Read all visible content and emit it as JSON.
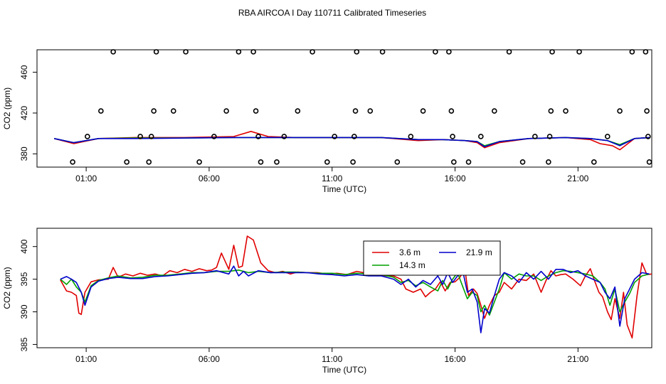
{
  "title": "RBA AIRCOA I  Day 110711  Calibrated Timeseries",
  "chart_data": [
    {
      "type": "scatter+line",
      "xlabel": "Time (UTC)",
      "ylabel": "CO2 (ppm)",
      "xticks": [
        "01:00",
        "06:00",
        "11:00",
        "16:00",
        "21:00"
      ],
      "xtick_hours": [
        1,
        6,
        11,
        16,
        21
      ],
      "xlim": [
        -1.0,
        24.0
      ],
      "yticks": [
        380,
        420,
        460
      ],
      "ylim": [
        367,
        482
      ],
      "grid": false,
      "legend": "none",
      "calibration_points": {
        "marker": "open-circle",
        "color": "#000000",
        "points": [
          [
            0.45,
            372
          ],
          [
            1.05,
            397
          ],
          [
            1.6,
            422
          ],
          [
            2.1,
            480
          ],
          [
            2.65,
            372
          ],
          [
            3.2,
            397
          ],
          [
            3.55,
            372
          ],
          [
            3.65,
            397
          ],
          [
            3.75,
            422
          ],
          [
            3.85,
            480
          ],
          [
            4.55,
            422
          ],
          [
            5.05,
            480
          ],
          [
            5.6,
            372
          ],
          [
            6.2,
            397
          ],
          [
            6.7,
            422
          ],
          [
            7.2,
            480
          ],
          [
            7.8,
            480
          ],
          [
            7.9,
            422
          ],
          [
            8.0,
            397
          ],
          [
            8.1,
            372
          ],
          [
            8.75,
            372
          ],
          [
            9.05,
            397
          ],
          [
            9.6,
            422
          ],
          [
            10.2,
            480
          ],
          [
            10.8,
            372
          ],
          [
            11.1,
            397
          ],
          [
            11.85,
            372
          ],
          [
            11.9,
            397
          ],
          [
            11.95,
            422
          ],
          [
            12.0,
            480
          ],
          [
            12.55,
            422
          ],
          [
            13.05,
            480
          ],
          [
            13.65,
            372
          ],
          [
            14.2,
            397
          ],
          [
            14.7,
            422
          ],
          [
            15.2,
            480
          ],
          [
            15.75,
            480
          ],
          [
            15.85,
            422
          ],
          [
            15.9,
            397
          ],
          [
            15.95,
            372
          ],
          [
            16.55,
            372
          ],
          [
            17.05,
            397
          ],
          [
            17.6,
            422
          ],
          [
            18.2,
            480
          ],
          [
            18.75,
            372
          ],
          [
            19.25,
            397
          ],
          [
            19.8,
            372
          ],
          [
            19.85,
            397
          ],
          [
            19.9,
            422
          ],
          [
            19.95,
            480
          ],
          [
            20.5,
            422
          ],
          [
            21.05,
            480
          ],
          [
            21.65,
            372
          ],
          [
            22.2,
            397
          ],
          [
            22.7,
            422
          ],
          [
            23.2,
            480
          ],
          [
            23.75,
            480
          ],
          [
            23.8,
            422
          ],
          [
            23.85,
            397
          ],
          [
            23.9,
            372
          ]
        ]
      },
      "series": [
        {
          "color": "#e00000",
          "x": [
            -0.3,
            0.5,
            1.5,
            3.0,
            5.0,
            7.0,
            7.7,
            8.4,
            9.5,
            11.0,
            13.0,
            14.5,
            15.5,
            16.4,
            16.9,
            17.2,
            17.8,
            19.0,
            20.5,
            21.5,
            21.9,
            22.4,
            22.7,
            23.3,
            23.9
          ],
          "y": [
            395,
            390,
            395,
            396,
            396,
            397,
            402,
            397,
            396,
            396,
            396,
            393,
            394,
            393,
            391,
            386,
            391,
            395,
            396,
            394,
            390,
            388,
            384,
            395,
            396
          ]
        },
        {
          "color": "#00a000",
          "x": [
            -0.3,
            0.5,
            1.5,
            3.0,
            5.0,
            7.0,
            8.5,
            11.0,
            13.0,
            14.5,
            15.5,
            16.4,
            16.9,
            17.2,
            17.8,
            19.0,
            20.5,
            21.5,
            22.2,
            22.7,
            23.3,
            23.9
          ],
          "y": [
            395,
            391,
            395,
            395.5,
            395.5,
            396,
            396,
            396,
            396,
            394,
            394,
            393,
            392,
            388,
            392,
            395,
            396,
            395,
            393,
            389,
            395,
            396
          ]
        },
        {
          "color": "#0000cc",
          "x": [
            -0.3,
            0.5,
            1.5,
            3.0,
            5.0,
            7.0,
            8.5,
            11.0,
            13.0,
            14.5,
            15.5,
            16.4,
            16.9,
            17.2,
            17.8,
            19.0,
            20.5,
            21.5,
            22.2,
            22.7,
            23.3,
            23.9
          ],
          "y": [
            395,
            391,
            395,
            395,
            395.5,
            396,
            396,
            396,
            396,
            394,
            394,
            393,
            392,
            387,
            392,
            395,
            396,
            395,
            393,
            388,
            395,
            396
          ]
        }
      ]
    },
    {
      "type": "line",
      "xlabel": "Time (UTC)",
      "ylabel": "CO2 (ppm)",
      "xticks": [
        "01:00",
        "06:00",
        "11:00",
        "16:00",
        "21:00"
      ],
      "xtick_hours": [
        1,
        6,
        11,
        16,
        21
      ],
      "xlim": [
        -1.0,
        24.0
      ],
      "yticks": [
        385,
        390,
        395,
        400
      ],
      "ylim": [
        384.5,
        402.8
      ],
      "grid": false,
      "legend": "top-center",
      "series": [
        {
          "name": "3.6 m",
          "color": "#e00000",
          "x": [
            -0.05,
            0.2,
            0.4,
            0.6,
            0.7,
            0.8,
            0.95,
            1.2,
            1.5,
            1.9,
            2.1,
            2.3,
            2.6,
            2.9,
            3.2,
            3.5,
            3.8,
            4.1,
            4.4,
            4.7,
            5.0,
            5.3,
            5.6,
            5.9,
            6.1,
            6.3,
            6.5,
            6.8,
            7.0,
            7.2,
            7.35,
            7.55,
            7.8,
            8.1,
            8.4,
            8.7,
            9.0,
            9.3,
            9.6,
            10.0,
            10.4,
            10.8,
            11.2,
            11.6,
            12.0,
            12.4,
            12.8,
            13.2,
            13.5,
            13.8,
            14.0,
            14.3,
            14.6,
            14.8,
            15.0,
            15.2,
            15.4,
            15.6,
            15.8,
            16.0,
            16.2,
            16.4,
            16.55,
            16.75,
            16.9,
            17.05,
            17.2,
            17.4,
            17.6,
            17.8,
            18.0,
            18.3,
            18.6,
            18.9,
            19.2,
            19.5,
            19.7,
            19.9,
            20.1,
            20.3,
            20.5,
            20.8,
            21.1,
            21.3,
            21.5,
            21.7,
            21.85,
            22.0,
            22.2,
            22.35,
            22.5,
            22.7,
            22.85,
            23.0,
            23.2,
            23.4,
            23.6,
            23.8,
            24.0
          ],
          "y": [
            394.9,
            393.2,
            393.0,
            392.5,
            389.8,
            389.6,
            393.0,
            394.6,
            394.9,
            395.0,
            396.8,
            395.3,
            395.8,
            395.5,
            395.9,
            395.6,
            395.8,
            395.5,
            396.3,
            396.0,
            396.5,
            396.2,
            396.6,
            396.3,
            396.4,
            396.8,
            399.0,
            396.5,
            400.2,
            396.8,
            397.0,
            401.6,
            401.0,
            397.5,
            396.3,
            396.0,
            396.2,
            395.8,
            396.1,
            396.0,
            396.0,
            395.8,
            395.9,
            395.7,
            396.2,
            395.9,
            395.8,
            395.5,
            395.5,
            395.0,
            393.5,
            393.0,
            393.5,
            392.3,
            393.0,
            393.5,
            394.6,
            393.2,
            394.5,
            394.6,
            395.3,
            396.6,
            392.5,
            393.5,
            392.8,
            391.0,
            389.0,
            391.0,
            392.5,
            393.0,
            394.5,
            393.5,
            395.0,
            394.8,
            395.8,
            393.0,
            394.8,
            396.3,
            395.5,
            395.7,
            395.8,
            395.0,
            394.0,
            395.5,
            396.6,
            394.5,
            393.0,
            392.3,
            390.0,
            388.8,
            392.0,
            389.0,
            393.0,
            388.0,
            386.0,
            392.5,
            397.5,
            395.7,
            395.8
          ]
        },
        {
          "name": "14.3 m",
          "color": "#00a000",
          "x": [
            -0.05,
            0.2,
            0.4,
            0.6,
            0.8,
            0.95,
            1.2,
            1.5,
            1.9,
            2.3,
            2.8,
            3.3,
            3.8,
            4.3,
            4.8,
            5.3,
            5.8,
            6.3,
            6.8,
            7.2,
            7.6,
            8.0,
            8.5,
            9.0,
            9.5,
            10.0,
            10.5,
            11.0,
            11.5,
            12.0,
            12.5,
            13.0,
            13.5,
            13.8,
            14.1,
            14.4,
            14.7,
            15.0,
            15.3,
            15.5,
            15.7,
            15.9,
            16.1,
            16.3,
            16.5,
            16.7,
            16.9,
            17.05,
            17.2,
            17.4,
            17.6,
            17.8,
            18.0,
            18.3,
            18.6,
            18.9,
            19.2,
            19.5,
            19.8,
            20.1,
            20.4,
            20.7,
            21.0,
            21.3,
            21.6,
            21.9,
            22.1,
            22.3,
            22.5,
            22.7,
            22.9,
            23.1,
            23.3,
            23.6,
            23.9
          ],
          "y": [
            395.0,
            394.2,
            395.0,
            393.8,
            393.0,
            391.5,
            394.0,
            394.8,
            395.2,
            395.5,
            395.2,
            395.3,
            395.6,
            395.6,
            395.8,
            396.0,
            396.0,
            396.2,
            396.2,
            396.4,
            396.0,
            396.2,
            396.0,
            396.1,
            396.1,
            396.0,
            395.9,
            395.9,
            395.7,
            395.9,
            395.8,
            395.7,
            395.3,
            394.5,
            394.8,
            394.0,
            394.5,
            393.8,
            393.2,
            394.8,
            393.5,
            395.0,
            396.0,
            394.0,
            392.0,
            393.0,
            392.5,
            390.0,
            391.0,
            389.5,
            391.5,
            393.5,
            396.0,
            395.0,
            395.8,
            395.5,
            395.5,
            394.8,
            395.5,
            396.0,
            396.3,
            396.2,
            396.0,
            395.8,
            395.5,
            394.5,
            393.5,
            391.0,
            393.5,
            390.0,
            391.5,
            392.8,
            394.5,
            395.5,
            395.8
          ]
        },
        {
          "name": "21.9 m",
          "color": "#0000cc",
          "x": [
            -0.05,
            0.2,
            0.4,
            0.6,
            0.8,
            0.95,
            1.2,
            1.5,
            1.9,
            2.3,
            2.8,
            3.3,
            3.8,
            4.3,
            4.8,
            5.3,
            5.8,
            6.3,
            6.8,
            7.0,
            7.2,
            7.4,
            7.6,
            8.0,
            8.5,
            9.0,
            9.5,
            10.0,
            10.5,
            11.0,
            11.5,
            12.0,
            12.5,
            13.0,
            13.5,
            13.8,
            14.1,
            14.4,
            14.7,
            15.0,
            15.3,
            15.5,
            15.7,
            15.9,
            16.1,
            16.3,
            16.5,
            16.7,
            16.9,
            17.05,
            17.2,
            17.4,
            17.6,
            17.8,
            18.0,
            18.3,
            18.6,
            18.9,
            19.2,
            19.5,
            19.8,
            20.1,
            20.4,
            20.7,
            21.0,
            21.3,
            21.6,
            21.9,
            22.1,
            22.3,
            22.5,
            22.7,
            22.9,
            23.1,
            23.3,
            23.6,
            23.9
          ],
          "y": [
            395.0,
            395.4,
            395.0,
            394.5,
            393.0,
            391.0,
            393.8,
            394.7,
            395.1,
            395.3,
            395.1,
            395.1,
            395.4,
            395.5,
            395.7,
            395.9,
            396.0,
            396.3,
            395.8,
            397.0,
            395.5,
            396.2,
            395.5,
            396.3,
            396.0,
            396.0,
            396.0,
            396.0,
            395.8,
            395.7,
            395.5,
            395.7,
            395.5,
            395.5,
            395.0,
            394.2,
            395.0,
            393.8,
            394.8,
            394.2,
            395.5,
            394.2,
            396.0,
            394.5,
            395.5,
            396.5,
            393.0,
            393.5,
            391.5,
            386.8,
            390.5,
            389.8,
            392.5,
            395.0,
            396.0,
            395.5,
            394.5,
            396.0,
            395.0,
            396.2,
            395.0,
            396.5,
            396.5,
            396.0,
            396.3,
            395.5,
            395.0,
            394.5,
            393.0,
            392.0,
            393.8,
            387.8,
            392.0,
            393.5,
            395.0,
            396.0,
            395.8
          ]
        }
      ]
    }
  ]
}
